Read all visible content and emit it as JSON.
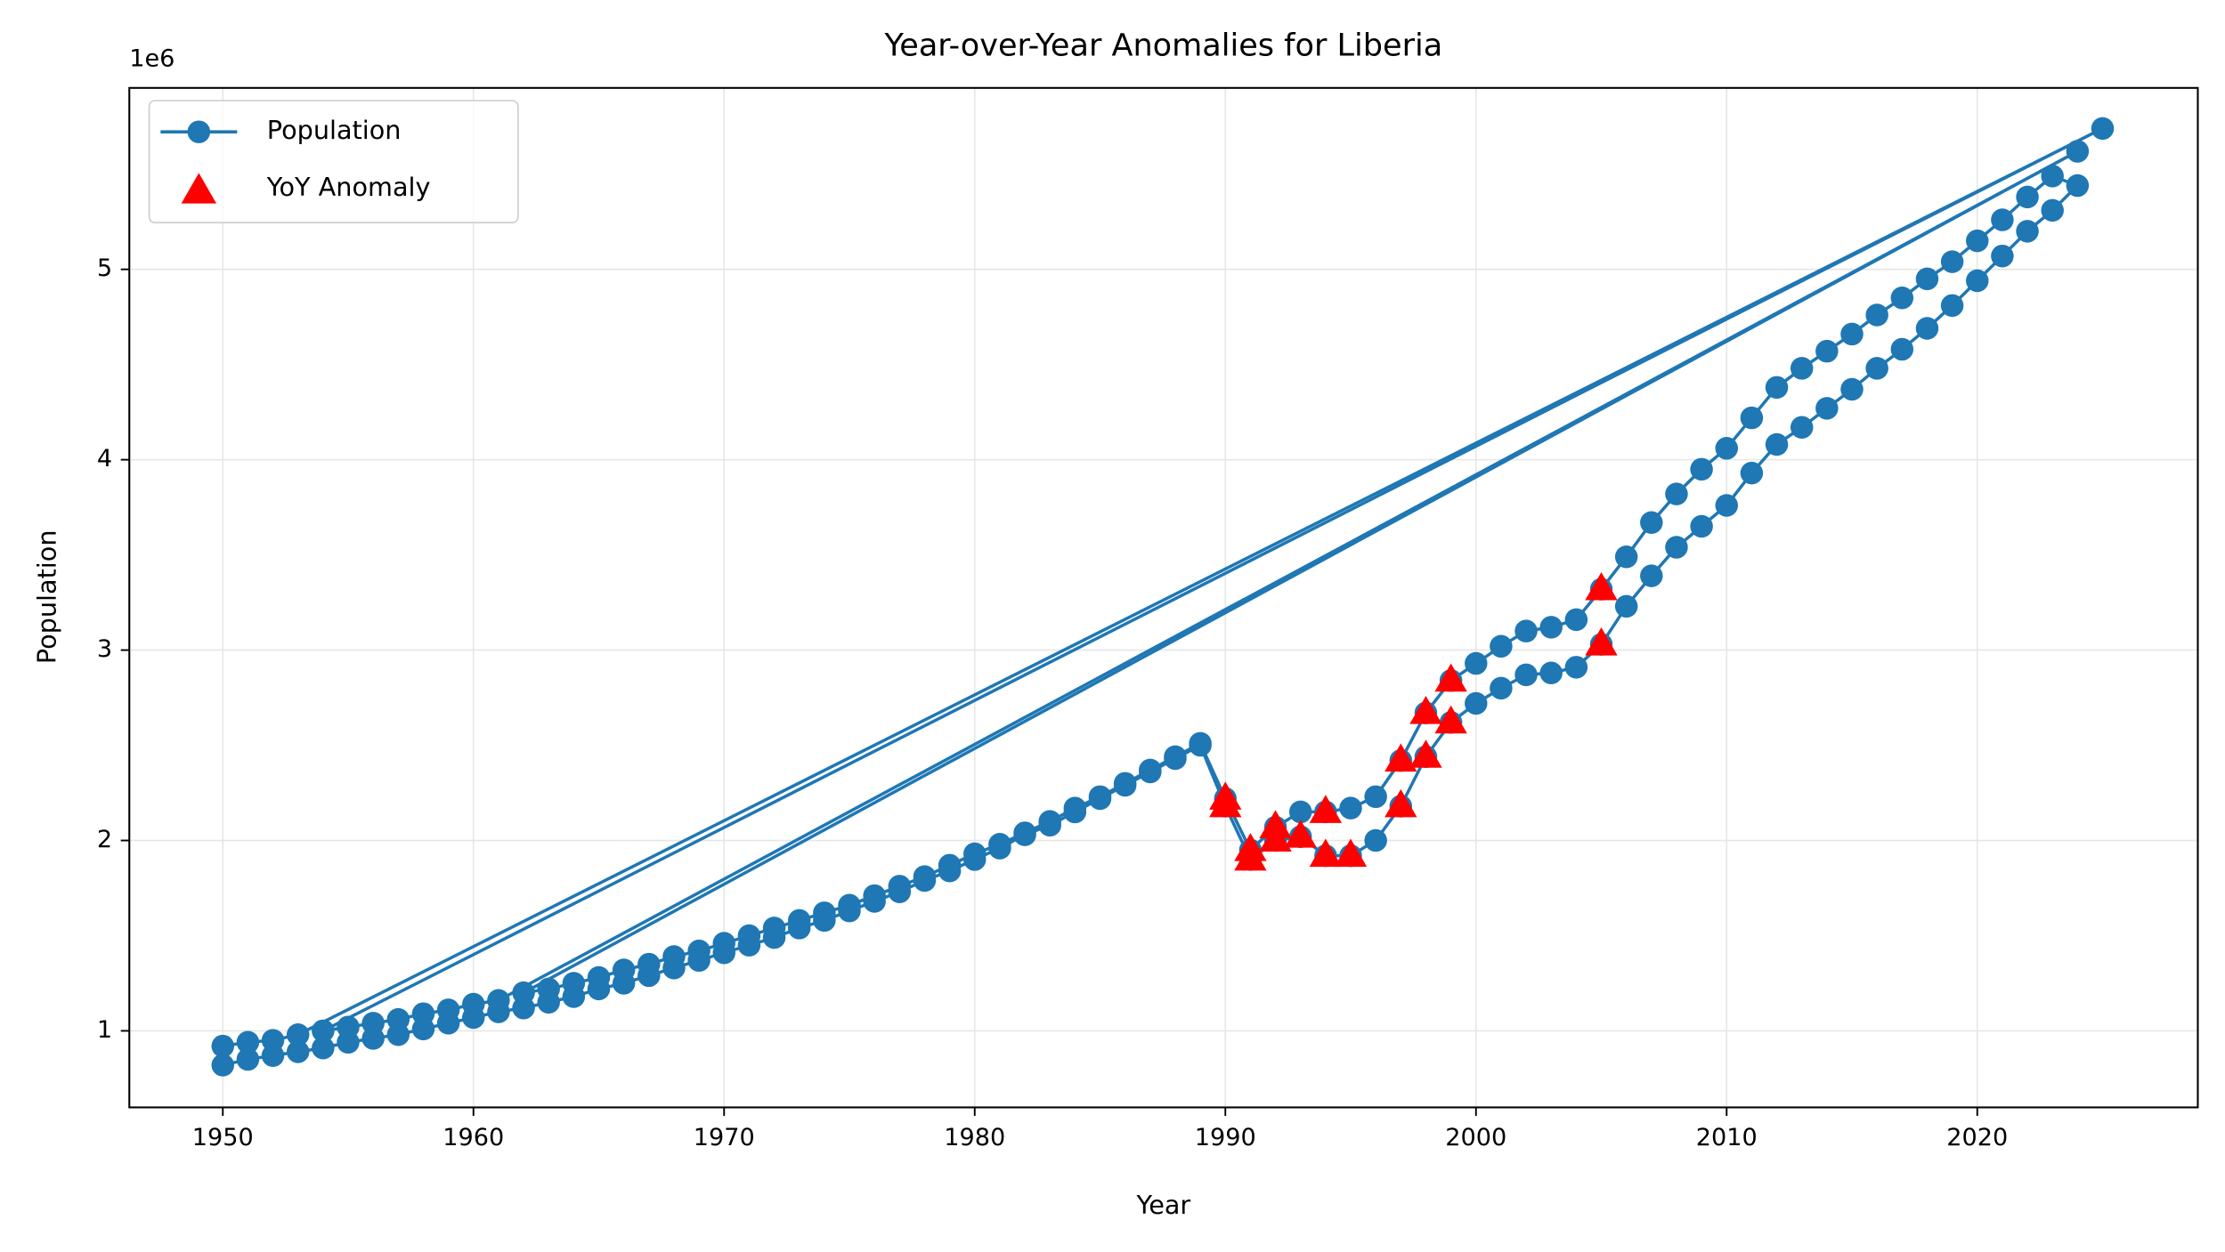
{
  "chart_data": {
    "type": "line",
    "title": "Year-over-Year Anomalies for Liberia",
    "xlabel": "Year",
    "ylabel": "Population",
    "y_offset_label": "1e6",
    "xlim": [
      1946.27,
      2028.8
    ],
    "ylim": [
      0.598,
      5.953
    ],
    "xticks": [
      1950,
      1960,
      1970,
      1980,
      1990,
      2000,
      2010,
      2020
    ],
    "yticks": [
      1,
      2,
      3,
      4,
      5
    ],
    "grid": true,
    "legend": "upper left",
    "series": [
      {
        "name": "Population",
        "type": "line",
        "marker": "circle",
        "color": "#1f77b4",
        "x": [
          1950,
          1951,
          1952,
          1953,
          2025,
          1954,
          1955,
          1956,
          1957,
          1958,
          1959,
          1960,
          1961,
          2024,
          1962,
          1963,
          1964,
          1965,
          1966,
          1967,
          1968,
          1969,
          1970,
          1971,
          1972,
          1973,
          1974,
          1975,
          1976,
          1977,
          1978,
          1979,
          1980,
          1981,
          1982,
          1983,
          1984,
          1985,
          1986,
          1987,
          1988,
          1989,
          1990,
          1991,
          1992,
          1993,
          1994,
          1995,
          1996,
          1997,
          1998,
          1999,
          2000,
          2001,
          2002,
          2003,
          2004,
          2005,
          2006,
          2007,
          2008,
          2009,
          2010,
          2011,
          2012,
          2013,
          2014,
          2015,
          2016,
          2017,
          2018,
          2019,
          2020,
          2021,
          2022,
          2023,
          2024,
          2023,
          2022,
          2021,
          2020,
          2019,
          2018,
          2017,
          2016,
          2015,
          2014,
          2013,
          2012,
          2011,
          2010,
          2009,
          2008,
          2007,
          2006,
          2005,
          2004,
          2003,
          2002,
          2001,
          2000,
          1999,
          1998,
          1997,
          1996,
          1995,
          1994,
          1993,
          1992,
          1991,
          1990,
          1989,
          1988,
          1987,
          1986,
          1985,
          1984,
          1983,
          1982,
          1981,
          1980,
          1979,
          1978,
          1977,
          1976,
          1975,
          1974,
          1973,
          1972,
          1971,
          1970,
          1969,
          1968,
          1967,
          1966,
          1965,
          1964,
          1963,
          1962,
          1961,
          1960,
          1959,
          1958,
          1957,
          1956,
          1955,
          1954,
          1953,
          1952,
          1951,
          1950
        ],
        "values": [
          0.92,
          0.94,
          0.95,
          0.98,
          5.74,
          1.0,
          1.02,
          1.04,
          1.06,
          1.09,
          1.11,
          1.14,
          1.16,
          5.62,
          1.2,
          1.22,
          1.25,
          1.28,
          1.32,
          1.35,
          1.39,
          1.42,
          1.46,
          1.5,
          1.54,
          1.58,
          1.62,
          1.66,
          1.71,
          1.76,
          1.81,
          1.87,
          1.93,
          1.98,
          2.04,
          2.1,
          2.17,
          2.23,
          2.3,
          2.37,
          2.44,
          2.51,
          2.22,
          1.95,
          2.07,
          2.15,
          2.15,
          2.17,
          2.23,
          2.42,
          2.67,
          2.84,
          2.93,
          3.02,
          3.1,
          3.12,
          3.16,
          3.32,
          3.49,
          3.67,
          3.82,
          3.95,
          4.06,
          4.22,
          4.38,
          4.48,
          4.57,
          4.66,
          4.76,
          4.85,
          4.95,
          5.04,
          5.15,
          5.26,
          5.38,
          5.49,
          5.44,
          5.31,
          5.2,
          5.07,
          4.94,
          4.81,
          4.69,
          4.58,
          4.48,
          4.37,
          4.27,
          4.17,
          4.08,
          3.93,
          3.76,
          3.65,
          3.54,
          3.39,
          3.23,
          3.03,
          2.91,
          2.88,
          2.87,
          2.8,
          2.72,
          2.62,
          2.44,
          2.18,
          2.0,
          1.92,
          1.92,
          2.02,
          2.0,
          1.9,
          2.18,
          2.5,
          2.43,
          2.36,
          2.29,
          2.22,
          2.15,
          2.08,
          2.03,
          1.96,
          1.9,
          1.84,
          1.79,
          1.73,
          1.68,
          1.63,
          1.58,
          1.54,
          1.49,
          1.45,
          1.41,
          1.37,
          1.33,
          1.29,
          1.25,
          1.22,
          1.18,
          1.15,
          1.12,
          1.1,
          1.07,
          1.04,
          1.01,
          0.98,
          0.96,
          0.94,
          0.91,
          0.89,
          0.87,
          0.85,
          0.82
        ]
      },
      {
        "name": "YoY Anomaly",
        "type": "scatter",
        "marker": "triangle",
        "color": "#ff0000",
        "x": [
          1990,
          1991,
          1992,
          1994,
          1997,
          1998,
          1999,
          2005,
          1990,
          1991,
          1992,
          1993,
          1994,
          1995,
          1997,
          1998,
          1999,
          2005
        ],
        "values": [
          2.22,
          1.95,
          2.07,
          2.15,
          2.42,
          2.67,
          2.84,
          3.32,
          2.18,
          1.9,
          2.0,
          2.02,
          1.92,
          1.92,
          2.18,
          2.44,
          2.62,
          3.03
        ]
      }
    ]
  }
}
